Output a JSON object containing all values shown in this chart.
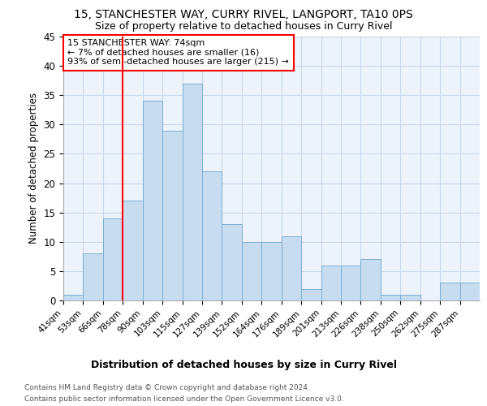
{
  "title": "15, STANCHESTER WAY, CURRY RIVEL, LANGPORT, TA10 0PS",
  "subtitle": "Size of property relative to detached houses in Curry Rivel",
  "xlabel": "Distribution of detached houses by size in Curry Rivel",
  "ylabel": "Number of detached properties",
  "bins": [
    41,
    53,
    66,
    78,
    90,
    103,
    115,
    127,
    139,
    152,
    164,
    176,
    189,
    201,
    213,
    226,
    238,
    250,
    262,
    275,
    287
  ],
  "values": [
    1,
    8,
    14,
    17,
    34,
    29,
    37,
    22,
    13,
    10,
    10,
    11,
    2,
    6,
    6,
    7,
    1,
    1,
    0,
    3,
    3
  ],
  "bar_color": "#c8dcf0",
  "bar_edge_color": "#7bafd4",
  "vline_x_bin_index": 3,
  "vline_color": "red",
  "annotation_text": "15 STANCHESTER WAY: 74sqm\n← 7% of detached houses are smaller (16)\n93% of semi-detached houses are larger (215) →",
  "ylim": [
    0,
    45
  ],
  "yticks": [
    0,
    5,
    10,
    15,
    20,
    25,
    30,
    35,
    40,
    45
  ],
  "grid_color": "#c8d8ea",
  "background_color": "#edf3fb",
  "footer_line1": "Contains HM Land Registry data © Crown copyright and database right 2024.",
  "footer_line2": "Contains public sector information licensed under the Open Government Licence v3.0."
}
